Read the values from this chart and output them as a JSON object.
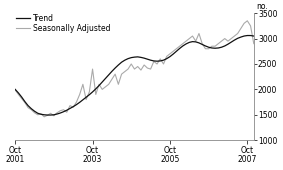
{
  "title": "",
  "ylabel": "no.",
  "ylim": [
    1000,
    3500
  ],
  "yticks": [
    1000,
    1500,
    2000,
    2500,
    3000,
    3500
  ],
  "xtick_labels": [
    "Oct\n2001",
    "Oct\n2003",
    "Oct\n2005",
    "Oct\n2007"
  ],
  "xtick_positions": [
    0,
    24,
    48,
    72
  ],
  "n_months": 75,
  "legend_entries": [
    "Trend",
    "Seasonally Adjusted"
  ],
  "trend_color": "#111111",
  "sa_color": "#aaaaaa",
  "background_color": "#ffffff",
  "trend_linewidth": 0.9,
  "sa_linewidth": 0.8,
  "trend_data": [
    2000,
    1930,
    1850,
    1760,
    1680,
    1620,
    1570,
    1530,
    1510,
    1500,
    1495,
    1495,
    1500,
    1515,
    1535,
    1560,
    1590,
    1625,
    1660,
    1700,
    1745,
    1795,
    1845,
    1895,
    1950,
    2010,
    2075,
    2145,
    2215,
    2285,
    2355,
    2420,
    2480,
    2535,
    2575,
    2605,
    2625,
    2635,
    2640,
    2630,
    2615,
    2595,
    2575,
    2560,
    2555,
    2560,
    2575,
    2605,
    2645,
    2695,
    2750,
    2805,
    2855,
    2895,
    2925,
    2940,
    2935,
    2915,
    2885,
    2855,
    2830,
    2815,
    2810,
    2815,
    2830,
    2855,
    2890,
    2930,
    2970,
    3005,
    3030,
    3050,
    3060,
    3060,
    3050
  ],
  "sa_data": [
    1990,
    1900,
    1820,
    1740,
    1640,
    1600,
    1540,
    1500,
    1520,
    1460,
    1490,
    1530,
    1480,
    1540,
    1580,
    1600,
    1550,
    1680,
    1650,
    1750,
    1900,
    2100,
    1800,
    1950,
    2400,
    1900,
    2100,
    2000,
    2050,
    2100,
    2200,
    2300,
    2100,
    2300,
    2350,
    2400,
    2500,
    2400,
    2450,
    2380,
    2480,
    2420,
    2400,
    2550,
    2500,
    2600,
    2500,
    2650,
    2700,
    2750,
    2800,
    2850,
    2900,
    2950,
    3000,
    3050,
    2950,
    3100,
    2900,
    2800,
    2800,
    2850,
    2850,
    2900,
    2950,
    3000,
    2950,
    3000,
    3050,
    3100,
    3200,
    3300,
    3350,
    3250,
    2900
  ]
}
